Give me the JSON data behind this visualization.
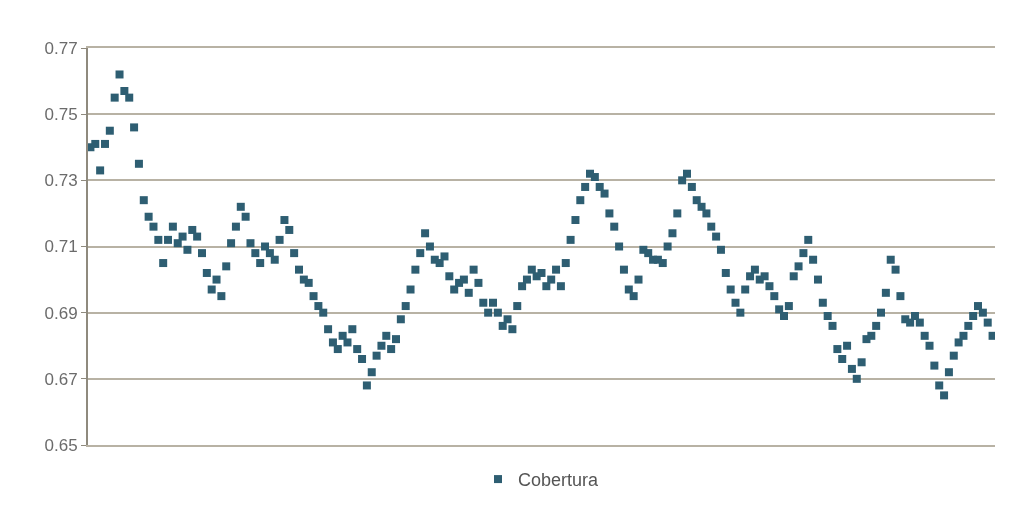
{
  "chart_data": {
    "type": "scatter",
    "marker": "square",
    "grid": "y",
    "legend": "bottom",
    "tick_labels": "y",
    "ylim": [
      0.65,
      0.77
    ],
    "yticks": [
      0.65,
      0.67,
      0.69,
      0.71,
      0.73,
      0.75,
      0.77
    ],
    "categories": [
      null,
      null,
      null,
      null,
      null,
      null,
      null,
      null,
      null,
      null,
      null,
      null,
      null,
      null,
      null,
      null,
      null,
      null,
      null,
      null,
      null,
      null,
      null,
      null,
      null,
      null,
      null,
      null,
      null,
      null,
      null,
      null,
      null,
      null,
      null,
      null,
      null,
      null,
      null,
      null,
      null,
      null,
      null,
      null,
      null,
      null,
      null,
      null,
      null,
      null,
      null,
      null,
      null,
      null,
      null,
      null,
      null,
      null,
      null,
      null,
      null,
      null,
      null,
      null,
      null,
      null,
      null,
      null,
      null,
      null,
      null,
      null,
      null,
      null,
      null,
      null,
      null,
      null,
      null,
      null,
      null,
      null,
      null,
      null,
      null,
      null,
      null,
      null,
      null,
      null,
      null,
      null,
      null,
      null,
      null,
      null,
      null,
      null,
      null,
      null,
      null,
      null,
      null,
      null,
      null,
      null,
      null,
      null,
      null,
      null,
      null,
      null,
      null,
      null,
      null,
      null,
      null,
      null,
      null,
      null,
      null,
      null,
      null,
      null,
      null,
      null,
      null,
      null,
      null,
      null,
      null,
      null,
      null,
      null,
      null,
      null,
      null,
      null,
      null,
      null,
      null,
      null,
      null,
      null,
      null,
      null,
      null,
      null,
      null,
      null,
      null,
      null,
      null,
      null,
      null,
      null,
      null,
      null,
      null,
      null,
      null,
      null,
      null,
      null,
      null,
      null,
      null,
      null,
      null,
      null,
      null,
      null,
      null,
      null,
      null,
      null,
      null,
      null,
      null,
      null,
      null,
      null,
      null,
      null,
      null,
      null,
      null
    ],
    "series": [
      {
        "name": "Cobertura",
        "color": "#2e5e72",
        "values": [
          0.74,
          0.741,
          0.733,
          0.741,
          0.745,
          0.755,
          0.762,
          0.757,
          0.755,
          0.746,
          0.735,
          0.724,
          0.719,
          0.716,
          0.712,
          0.705,
          0.712,
          0.716,
          0.711,
          0.713,
          0.709,
          0.715,
          0.713,
          0.708,
          0.702,
          0.697,
          0.7,
          0.695,
          0.704,
          0.711,
          0.716,
          0.722,
          0.719,
          0.711,
          0.708,
          0.705,
          0.71,
          0.708,
          0.706,
          0.712,
          0.718,
          0.715,
          0.708,
          0.703,
          0.7,
          0.699,
          0.695,
          0.692,
          0.69,
          0.685,
          0.681,
          0.679,
          0.683,
          0.681,
          0.685,
          0.679,
          0.676,
          0.668,
          0.672,
          0.677,
          0.68,
          0.683,
          0.679,
          0.682,
          0.688,
          0.692,
          0.697,
          0.703,
          0.708,
          0.714,
          0.71,
          0.706,
          0.705,
          0.707,
          0.701,
          0.697,
          0.699,
          0.7,
          0.696,
          0.703,
          0.699,
          0.693,
          0.69,
          0.693,
          0.69,
          0.686,
          0.688,
          0.685,
          0.692,
          0.698,
          0.7,
          0.703,
          0.701,
          0.702,
          0.698,
          0.7,
          0.703,
          0.698,
          0.705,
          0.712,
          0.718,
          0.724,
          0.728,
          0.732,
          0.731,
          0.728,
          0.726,
          0.72,
          0.716,
          0.71,
          0.703,
          0.697,
          0.695,
          0.7,
          0.709,
          0.708,
          0.706,
          0.706,
          0.705,
          0.71,
          0.714,
          0.72,
          0.73,
          0.732,
          0.728,
          0.724,
          0.722,
          0.72,
          0.716,
          0.713,
          0.709,
          0.702,
          0.697,
          0.693,
          0.69,
          0.697,
          0.701,
          0.703,
          0.7,
          0.701,
          0.698,
          0.695,
          0.691,
          0.689,
          0.692,
          0.701,
          0.704,
          0.708,
          0.712,
          0.706,
          0.7,
          0.693,
          0.689,
          0.686,
          0.679,
          0.676,
          0.68,
          0.673,
          0.67,
          0.675,
          0.682,
          0.683,
          0.686,
          0.69,
          0.696,
          0.706,
          0.703,
          0.695,
          0.688,
          0.687,
          0.689,
          0.687,
          0.683,
          0.68,
          0.674,
          0.668,
          0.665,
          0.672,
          0.677,
          0.681,
          0.683,
          0.686,
          0.689,
          0.692,
          0.69,
          0.687,
          0.683
        ]
      }
    ]
  }
}
